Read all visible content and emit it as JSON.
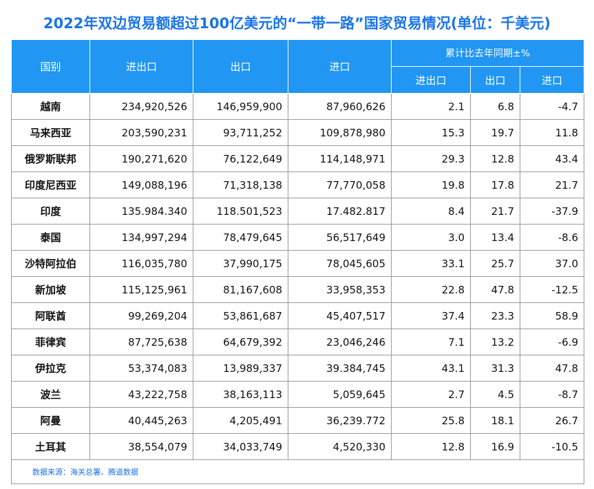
{
  "title": "2022年双边贸易额超过100亿美元的“一带一路”国家贸易情况(单位：千美元)",
  "table": {
    "header": [
      "国别",
      "进出口",
      "出口",
      "进口"
    ],
    "group_header": "累计比去年同期±%",
    "sub_header": [
      "进出口",
      "出口",
      "进口"
    ],
    "rows": [
      [
        "越南",
        "234,920,526",
        "146,959,900",
        "87,960,626",
        "2.1",
        "6.8",
        "-4.7"
      ],
      [
        "马来西亚",
        "203,590,231",
        "93,711,252",
        "109,878,980",
        "15.3",
        "19.7",
        "11.8"
      ],
      [
        "俄罗斯联邦",
        "190,271,620",
        "76,122,649",
        "114,148,971",
        "29.3",
        "12.8",
        "43.4"
      ],
      [
        "印度尼西亚",
        "149,088,196",
        "71,318,138",
        "77,770,058",
        "19.8",
        "17.8",
        "21.7"
      ],
      [
        "印度",
        "135.984.340",
        "118.501,523",
        "17.482.817",
        "8.4",
        "21.7",
        "-37.9"
      ],
      [
        "泰国",
        "134,997,294",
        "78,479,645",
        "56,517,649",
        "3.0",
        "13.4",
        "-8.6"
      ],
      [
        "沙特阿拉伯",
        "116,035,780",
        "37,990,175",
        "78,045,605",
        "33.1",
        "25.7",
        "37.0"
      ],
      [
        "新加坡",
        "115,125,961",
        "81,167,608",
        "33,958,353",
        "22.8",
        "47.8",
        "-12.5"
      ],
      [
        "阿联酋",
        "99,269,204",
        "53,861,687",
        "45,407,517",
        "37.4",
        "23.3",
        "58.9"
      ],
      [
        "菲律宾",
        "87,725,638",
        "64,679,392",
        "23,046,246",
        "7.1",
        "13.2",
        "-6.9"
      ],
      [
        "伊拉克",
        "53,374,083",
        "13,989,337",
        "39.384,745",
        "43.1",
        "31.3",
        "47.8"
      ],
      [
        "波兰",
        "43,222,758",
        "38,163,113",
        "5,059,645",
        "2.7",
        "4.5",
        "-8.7"
      ],
      [
        "阿曼",
        "40,445,263",
        "4,205,491",
        "36,239.772",
        "25.8",
        "18.1",
        "26.7"
      ],
      [
        "土耳其",
        "38,554,079",
        "34,033,749",
        "4,520,330",
        "12.8",
        "16.9",
        "-10.5"
      ]
    ]
  },
  "source": "数据来源：海关总署、腾道数据"
}
